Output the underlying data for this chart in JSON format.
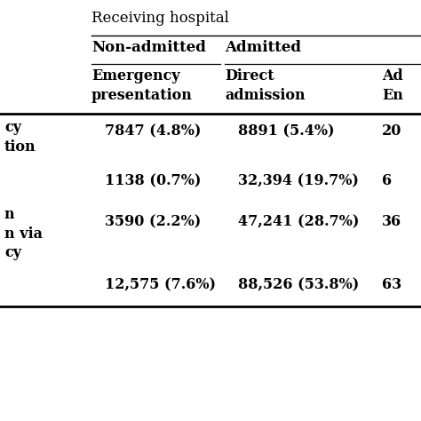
{
  "bg_color": "#ffffff",
  "text_color": "#000000",
  "line_color": "#000000",
  "title": "Receiving hospital",
  "header1_nonadm": "Non-admitted",
  "header1_adm": "Admitted",
  "header2_col1": "Emergency\npresentation",
  "header2_col2": "Direct\nadmission",
  "header2_col3": "Ad\nEn",
  "row1_label": "cy\ntion",
  "row2_label": "",
  "row3_label": "n\nn via\ncy",
  "row4_label": "",
  "col1_values": [
    "7847 (4.8%)",
    "1138 (0.7%)",
    "3590 (2.2%)",
    "12,575 (7.6%)"
  ],
  "col2_values": [
    "8891 (5.4%)",
    "32,394 (19.7%)",
    "47,241 (28.7%)",
    "88,526 (53.8%)"
  ],
  "col3_values": [
    "20",
    "6",
    "36",
    "63"
  ],
  "font_size": 11.5,
  "title_font_size": 12,
  "header_font_size": 12
}
